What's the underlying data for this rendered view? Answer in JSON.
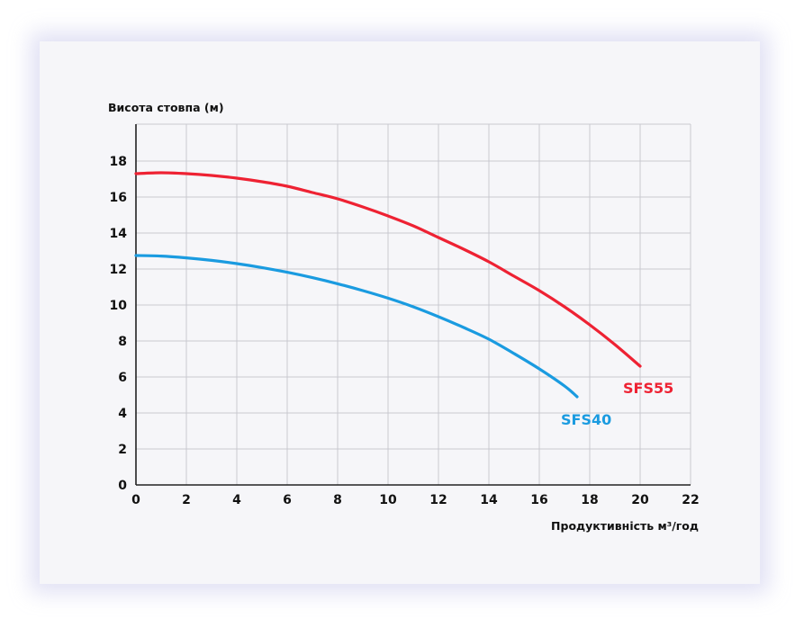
{
  "chart_data": {
    "type": "line",
    "ylabel": "Висота стовпа (м)",
    "xlabel": "Продуктивність м³/год",
    "xlim": [
      0,
      22
    ],
    "ylim": [
      0,
      20
    ],
    "x_ticks": [
      0,
      2,
      4,
      6,
      8,
      10,
      12,
      14,
      16,
      18,
      20,
      22
    ],
    "y_ticks": [
      0,
      2,
      4,
      6,
      8,
      10,
      12,
      14,
      16,
      18
    ],
    "grid": true,
    "series": [
      {
        "name": "SFS55",
        "color": "#ee2233",
        "x": [
          0,
          1,
          2,
          3,
          4,
          5,
          6,
          7,
          8,
          9,
          10,
          11,
          12,
          13,
          14,
          15,
          16,
          17,
          18,
          19,
          20
        ],
        "y": [
          17.3,
          17.35,
          17.3,
          17.2,
          17.05,
          16.85,
          16.6,
          16.25,
          15.9,
          15.45,
          14.95,
          14.4,
          13.75,
          13.1,
          12.4,
          11.6,
          10.8,
          9.9,
          8.9,
          7.8,
          6.6
        ]
      },
      {
        "name": "SFS40",
        "color": "#1a9be0",
        "x": [
          0,
          1,
          2,
          3,
          4,
          5,
          6,
          7,
          8,
          9,
          10,
          11,
          12,
          13,
          14,
          15,
          16,
          17,
          17.5
        ],
        "y": [
          12.75,
          12.72,
          12.62,
          12.48,
          12.3,
          12.08,
          11.82,
          11.52,
          11.18,
          10.8,
          10.38,
          9.9,
          9.35,
          8.75,
          8.1,
          7.3,
          6.45,
          5.5,
          4.9
        ]
      }
    ]
  }
}
